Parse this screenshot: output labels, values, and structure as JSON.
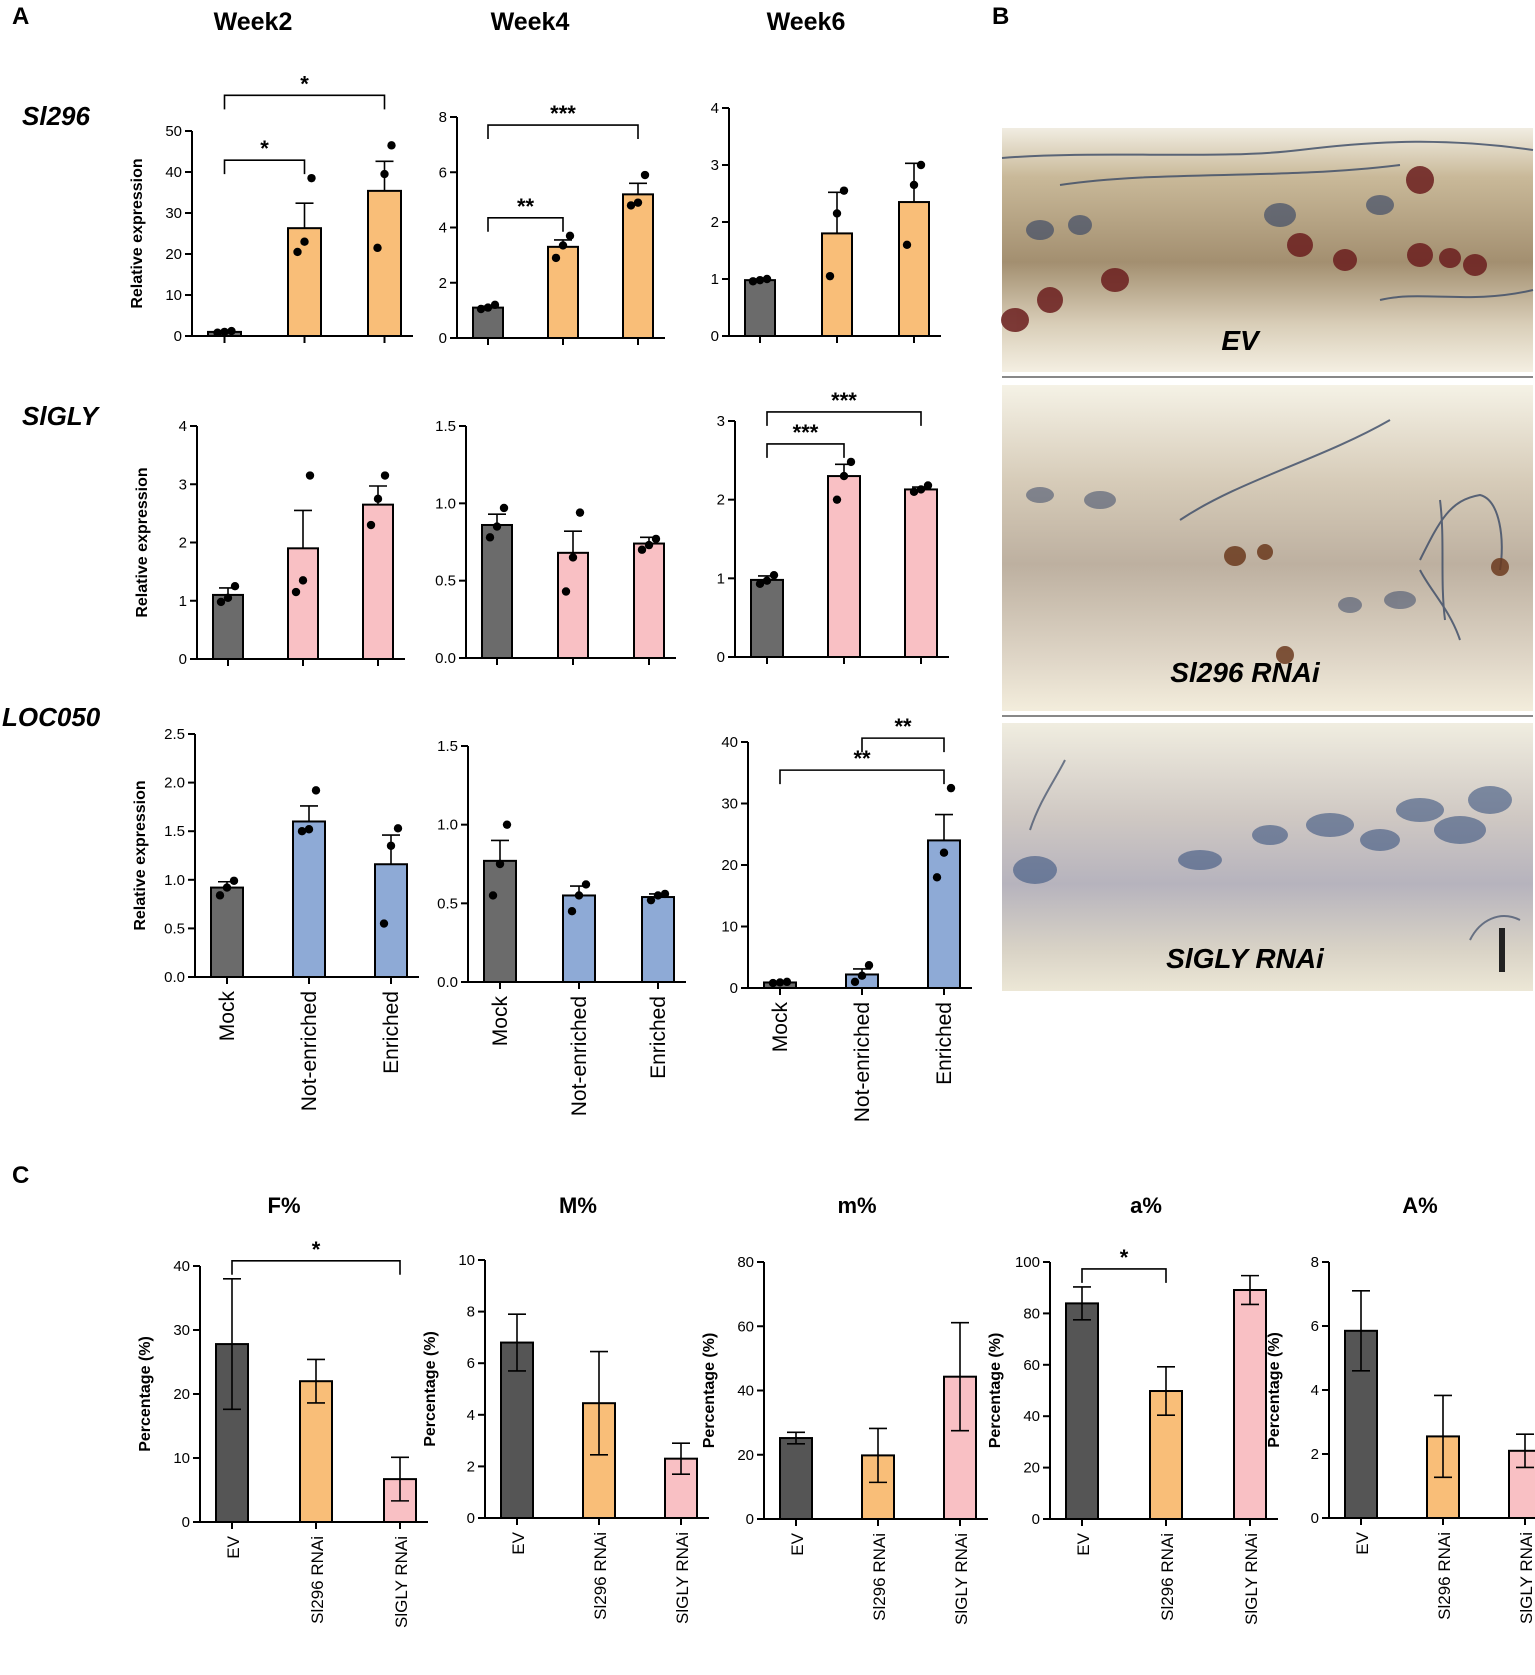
{
  "panels": {
    "a": "A",
    "b": "B",
    "c": "C"
  },
  "colors": {
    "mock": "#6b6b6b",
    "sl296": "#f9be78",
    "slgly": "#f9c0c4",
    "loc050": "#8eaad6",
    "ev": "#555555"
  },
  "panel_b": {
    "photos": [
      {
        "label": "EV"
      },
      {
        "label": "Sl296 RNAi"
      },
      {
        "label": "SlGLY RNAi"
      }
    ]
  },
  "chart_data": [
    {
      "id": "a11",
      "type": "bar",
      "panel": "A",
      "title": "Week2",
      "gene": "Sl296",
      "ylabel": "Relative expression",
      "categories": [
        "Mock",
        "Not-enriched",
        "Enriched"
      ],
      "values": [
        1.0,
        26.3,
        35.4
      ],
      "errors": [
        0.3,
        6.1,
        7.2
      ],
      "points": [
        [
          0.8,
          1.0,
          1.2
        ],
        [
          20.5,
          23.0,
          38.5
        ],
        [
          21.5,
          39.5,
          46.5
        ]
      ],
      "ylim": [
        0,
        50
      ],
      "yticks": [
        "0",
        "10",
        "20",
        "30",
        "40",
        "50"
      ],
      "tickvals": [
        0,
        10,
        20,
        30,
        40,
        50
      ],
      "sig": [
        {
          "from": 0,
          "to": 1,
          "label": "*"
        },
        {
          "from": 0,
          "to": 2,
          "label": "*"
        }
      ]
    },
    {
      "id": "a12",
      "type": "bar",
      "panel": "A",
      "title": "Week4",
      "gene": "Sl296",
      "categories": [
        "Mock",
        "Not-enriched",
        "Enriched"
      ],
      "values": [
        1.1,
        3.3,
        5.2
      ],
      "errors": [
        0.05,
        0.25,
        0.4
      ],
      "points": [
        [
          1.05,
          1.1,
          1.2
        ],
        [
          2.9,
          3.35,
          3.7
        ],
        [
          4.8,
          4.9,
          5.9
        ]
      ],
      "ylim": [
        0,
        8
      ],
      "yticks": [
        "0",
        "2",
        "4",
        "6",
        "8"
      ],
      "tickvals": [
        0,
        2,
        4,
        6,
        8
      ],
      "sig": [
        {
          "from": 0,
          "to": 1,
          "label": "**"
        },
        {
          "from": 0,
          "to": 2,
          "label": "***"
        }
      ]
    },
    {
      "id": "a13",
      "type": "bar",
      "panel": "A",
      "title": "Week6",
      "gene": "Sl296",
      "categories": [
        "Mock",
        "Not-enriched",
        "Enriched"
      ],
      "values": [
        0.98,
        1.8,
        2.35
      ],
      "errors": [
        0.02,
        0.72,
        0.68
      ],
      "points": [
        [
          0.96,
          0.98,
          1.0
        ],
        [
          1.05,
          2.15,
          2.55
        ],
        [
          1.6,
          2.65,
          3.0
        ]
      ],
      "ylim": [
        0,
        4
      ],
      "yticks": [
        "0",
        "1",
        "2",
        "3",
        "4"
      ],
      "tickvals": [
        0,
        1,
        2,
        3,
        4
      ],
      "sig": []
    },
    {
      "id": "a21",
      "type": "bar",
      "panel": "A",
      "gene": "SlGLY",
      "ylabel": "Relative expression",
      "categories": [
        "Mock",
        "Not-enriched",
        "Enriched"
      ],
      "values": [
        1.1,
        1.9,
        2.65
      ],
      "errors": [
        0.12,
        0.65,
        0.32
      ],
      "points": [
        [
          0.98,
          1.05,
          1.25
        ],
        [
          1.15,
          1.35,
          3.15
        ],
        [
          2.3,
          2.75,
          3.15
        ]
      ],
      "ylim": [
        0,
        4
      ],
      "yticks": [
        "0",
        "1",
        "2",
        "3",
        "4"
      ],
      "tickvals": [
        0,
        1,
        2,
        3,
        4
      ],
      "sig": []
    },
    {
      "id": "a22",
      "type": "bar",
      "panel": "A",
      "gene": "SlGLY",
      "categories": [
        "Mock",
        "Not-enriched",
        "Enriched"
      ],
      "values": [
        0.86,
        0.68,
        0.74
      ],
      "errors": [
        0.07,
        0.14,
        0.04
      ],
      "points": [
        [
          0.78,
          0.85,
          0.97
        ],
        [
          0.43,
          0.65,
          0.94
        ],
        [
          0.7,
          0.73,
          0.77
        ]
      ],
      "ylim": [
        0,
        1.5
      ],
      "yticks": [
        "0.0",
        "0.5",
        "1.0",
        "1.5"
      ],
      "tickvals": [
        0,
        0.5,
        1.0,
        1.5
      ],
      "sig": []
    },
    {
      "id": "a23",
      "type": "bar",
      "panel": "A",
      "gene": "SlGLY",
      "categories": [
        "Mock",
        "Not-enriched",
        "Enriched"
      ],
      "values": [
        0.98,
        2.3,
        2.13
      ],
      "errors": [
        0.05,
        0.15,
        0.03
      ],
      "points": [
        [
          0.93,
          0.97,
          1.04
        ],
        [
          2.0,
          2.3,
          2.48
        ],
        [
          2.1,
          2.13,
          2.18
        ]
      ],
      "ylim": [
        0,
        3
      ],
      "yticks": [
        "0",
        "1",
        "2",
        "3"
      ],
      "tickvals": [
        0,
        1,
        2,
        3
      ],
      "sig": [
        {
          "from": 0,
          "to": 1,
          "label": "***"
        },
        {
          "from": 0,
          "to": 2,
          "label": "***"
        }
      ]
    },
    {
      "id": "a31",
      "type": "bar",
      "panel": "A",
      "gene": "LOC050",
      "ylabel": "Relative expression",
      "categories": [
        "Mock",
        "Not-enriched",
        "Enriched"
      ],
      "values": [
        0.92,
        1.6,
        1.16
      ],
      "errors": [
        0.06,
        0.16,
        0.3
      ],
      "points": [
        [
          0.84,
          0.92,
          0.99
        ],
        [
          1.5,
          1.52,
          1.92
        ],
        [
          0.55,
          1.35,
          1.53
        ]
      ],
      "ylim": [
        0,
        2.5
      ],
      "yticks": [
        "0.0",
        "0.5",
        "1.0",
        "1.5",
        "2.0",
        "2.5"
      ],
      "tickvals": [
        0,
        0.5,
        1.0,
        1.5,
        2.0,
        2.5
      ],
      "sig": []
    },
    {
      "id": "a32",
      "type": "bar",
      "panel": "A",
      "gene": "LOC050",
      "categories": [
        "Mock",
        "Not-enriched",
        "Enriched"
      ],
      "values": [
        0.77,
        0.55,
        0.54
      ],
      "errors": [
        0.13,
        0.06,
        0.02
      ],
      "points": [
        [
          0.55,
          0.75,
          1.0
        ],
        [
          0.45,
          0.55,
          0.62
        ],
        [
          0.52,
          0.55,
          0.56
        ]
      ],
      "ylim": [
        0,
        1.5
      ],
      "yticks": [
        "0.0",
        "0.5",
        "1.0",
        "1.5"
      ],
      "tickvals": [
        0,
        0.5,
        1.0,
        1.5
      ],
      "sig": []
    },
    {
      "id": "a33",
      "type": "bar",
      "panel": "A",
      "gene": "LOC050",
      "categories": [
        "Mock",
        "Not-enriched",
        "Enriched"
      ],
      "values": [
        0.9,
        2.2,
        24.0
      ],
      "errors": [
        0.08,
        0.9,
        4.2
      ],
      "points": [
        [
          0.8,
          0.9,
          1.0
        ],
        [
          1.0,
          2.0,
          3.7
        ],
        [
          18.0,
          22.0,
          32.5
        ]
      ],
      "ylim": [
        0,
        40
      ],
      "yticks": [
        "0",
        "10",
        "20",
        "30",
        "40"
      ],
      "tickvals": [
        0,
        10,
        20,
        30,
        40
      ],
      "sig": [
        {
          "from": 0,
          "to": 2,
          "label": "**"
        },
        {
          "from": 1,
          "to": 2,
          "label": "**"
        }
      ]
    },
    {
      "id": "c1",
      "type": "bar",
      "panel": "C",
      "title": "F%",
      "ylabel": "Percentage (%)",
      "categories": [
        "EV",
        "Sl296 RNAi",
        "SlGLY RNAi"
      ],
      "values": [
        27.8,
        22.0,
        6.7
      ],
      "errors": [
        10.2,
        3.4,
        3.4
      ],
      "ylim": [
        0,
        40
      ],
      "yticks": [
        "0",
        "10",
        "20",
        "30",
        "40"
      ],
      "tickvals": [
        0,
        10,
        20,
        30,
        40
      ],
      "sig": [
        {
          "from": 0,
          "to": 2,
          "label": "*"
        }
      ]
    },
    {
      "id": "c2",
      "type": "bar",
      "panel": "C",
      "title": "M%",
      "ylabel": "Percentage (%)",
      "categories": [
        "EV",
        "Sl296 RNAi",
        "SlGLY RNAi"
      ],
      "values": [
        6.8,
        4.45,
        2.3
      ],
      "errors": [
        1.1,
        2.0,
        0.6
      ],
      "ylim": [
        0,
        10
      ],
      "yticks": [
        "0",
        "2",
        "4",
        "6",
        "8",
        "10"
      ],
      "tickvals": [
        0,
        2,
        4,
        6,
        8,
        10
      ],
      "sig": []
    },
    {
      "id": "c3",
      "type": "bar",
      "panel": "C",
      "title": "m%",
      "ylabel": "Percentage (%)",
      "categories": [
        "EV",
        "Sl296 RNAi",
        "SlGLY RNAi"
      ],
      "values": [
        25.2,
        19.8,
        44.3
      ],
      "errors": [
        1.8,
        8.4,
        16.8
      ],
      "ylim": [
        0,
        80
      ],
      "yticks": [
        "0",
        "20",
        "40",
        "60",
        "80"
      ],
      "tickvals": [
        0,
        20,
        40,
        60,
        80
      ],
      "sig": []
    },
    {
      "id": "c4",
      "type": "bar",
      "panel": "C",
      "title": "a%",
      "ylabel": "Percentage (%)",
      "categories": [
        "EV",
        "Sl296 RNAi",
        "SlGLY RNAi"
      ],
      "values": [
        83.9,
        49.8,
        89.1
      ],
      "errors": [
        6.4,
        9.4,
        5.6
      ],
      "ylim": [
        0,
        100
      ],
      "yticks": [
        "0",
        "20",
        "40",
        "60",
        "80",
        "100"
      ],
      "tickvals": [
        0,
        20,
        40,
        60,
        80,
        100
      ],
      "sig": [
        {
          "from": 0,
          "to": 1,
          "label": "*"
        }
      ]
    },
    {
      "id": "c5",
      "type": "bar",
      "panel": "C",
      "title": "A%",
      "ylabel": "Percentage (%)",
      "categories": [
        "EV",
        "Sl296 RNAi",
        "SlGLY RNAi"
      ],
      "values": [
        5.85,
        2.55,
        2.1
      ],
      "errors": [
        1.25,
        1.28,
        0.52
      ],
      "ylim": [
        0,
        8
      ],
      "yticks": [
        "0",
        "2",
        "4",
        "6",
        "8"
      ],
      "tickvals": [
        0,
        2,
        4,
        6,
        8
      ],
      "sig": []
    }
  ]
}
